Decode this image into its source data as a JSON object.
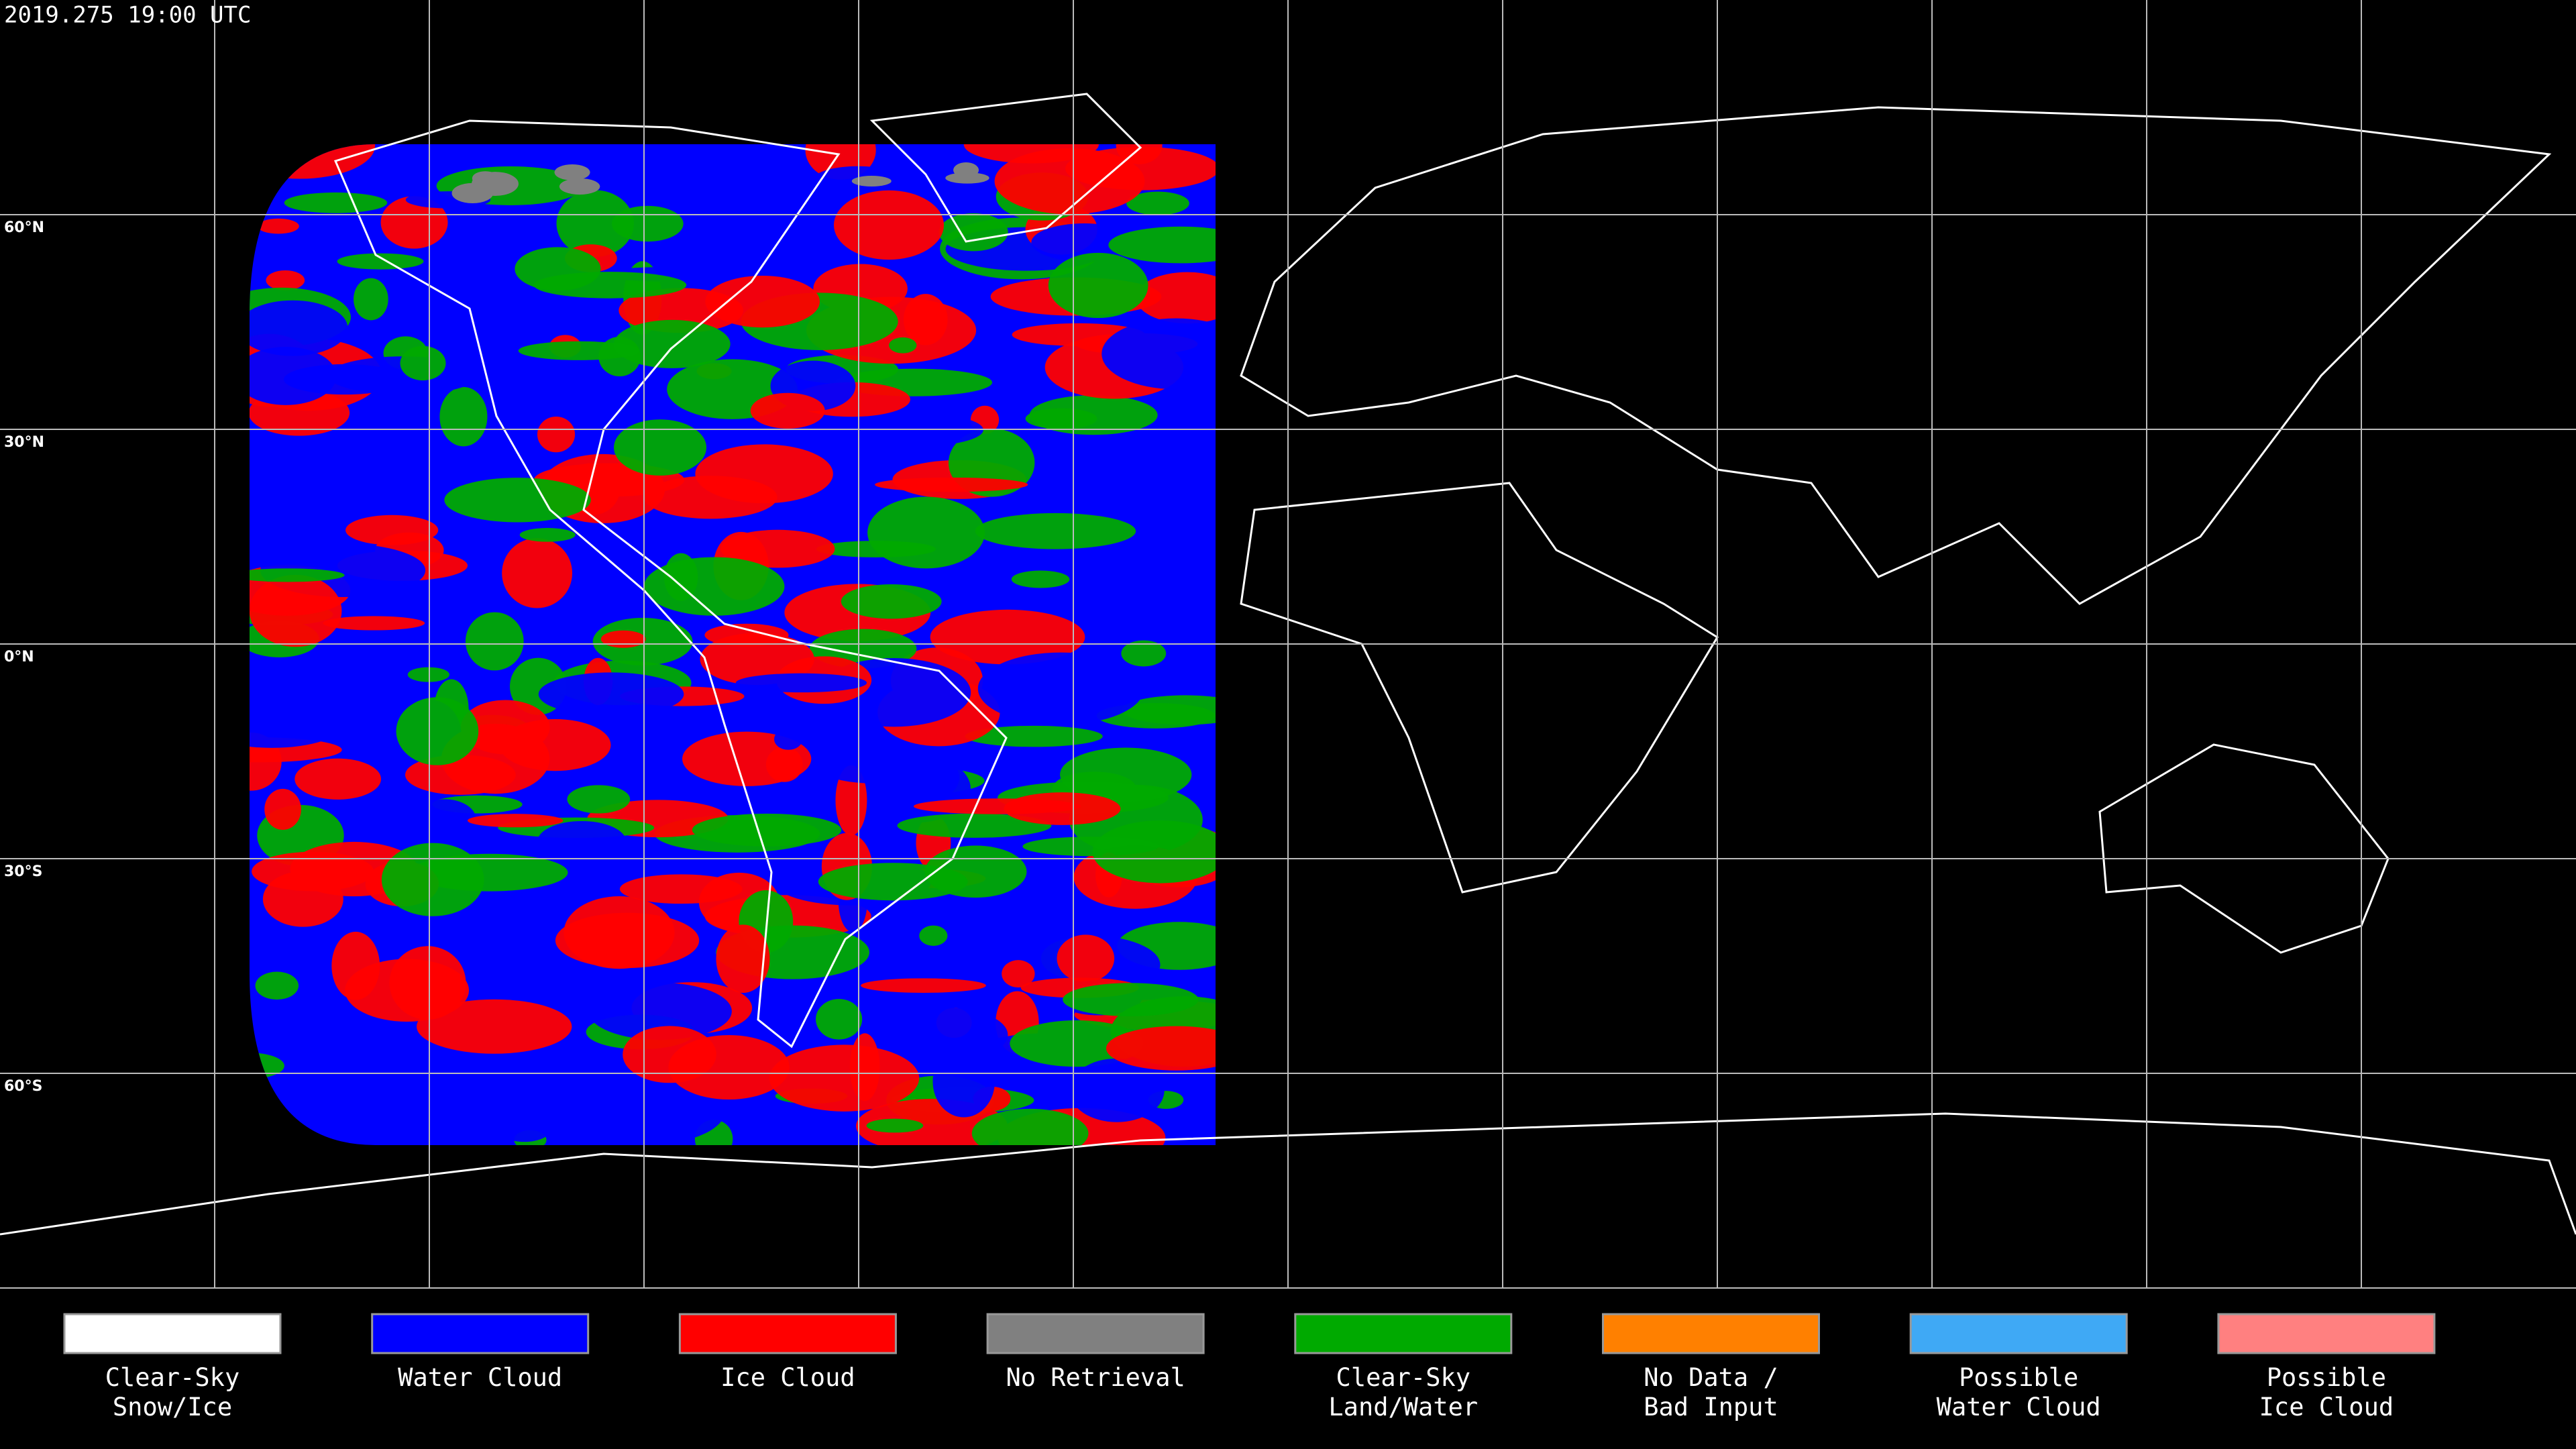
{
  "timestamp": "2019.275 19:00 UTC",
  "latitude_labels": [
    "60°N",
    "30°N",
    "0°N",
    "30°S",
    "60°S"
  ],
  "legend": [
    {
      "label": [
        "Clear-Sky",
        "Snow/Ice"
      ],
      "color": "#ffffff"
    },
    {
      "label": [
        "Water Cloud"
      ],
      "color": "#0000ff"
    },
    {
      "label": [
        "Ice Cloud"
      ],
      "color": "#ff0000"
    },
    {
      "label": [
        "No Retrieval"
      ],
      "color": "#808080"
    },
    {
      "label": [
        "Clear-Sky",
        "Land/Water"
      ],
      "color": "#00aa00"
    },
    {
      "label": [
        "No Data /",
        "Bad Input"
      ],
      "color": "#ff8000"
    },
    {
      "label": [
        "Possible",
        "Water Cloud"
      ],
      "color": "#3fa9f5"
    },
    {
      "label": [
        "Possible",
        "Ice Cloud"
      ],
      "color": "#ff8080"
    }
  ]
}
